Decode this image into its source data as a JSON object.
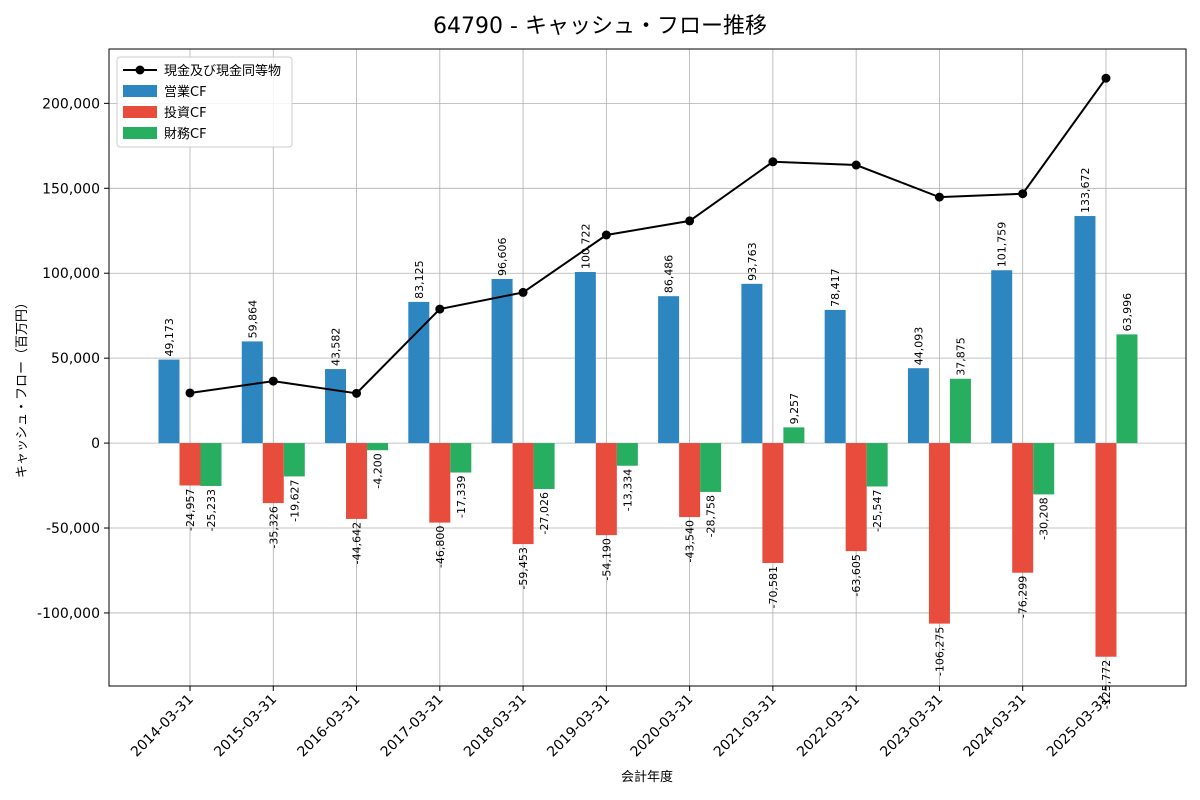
{
  "chart_data": {
    "type": "bar",
    "title": "64790 - キャッシュ・フロー推移",
    "xlabel": "会計年度",
    "ylabel": "キャッシュ・フロー（百万円）",
    "ylim": [
      -143000,
      232000
    ],
    "yticks": [
      -100000,
      -50000,
      0,
      50000,
      100000,
      150000,
      200000
    ],
    "ytick_labels": [
      "-100,000",
      "-50,000",
      "0",
      "50,000",
      "100,000",
      "150,000",
      "200,000"
    ],
    "grid": true,
    "legend_position": "top-left",
    "categories": [
      "2014-03-31",
      "2015-03-31",
      "2016-03-31",
      "2017-03-31",
      "2018-03-31",
      "2019-03-31",
      "2020-03-31",
      "2021-03-31",
      "2022-03-31",
      "2023-03-31",
      "2024-03-31",
      "2025-03-31"
    ],
    "series": [
      {
        "name": "営業CF",
        "kind": "bar",
        "color": "#2e86c1",
        "values": [
          49173,
          59864,
          43582,
          83125,
          96606,
          100722,
          86486,
          93763,
          78417,
          44093,
          101759,
          133672
        ],
        "labels": [
          "49,173",
          "59,864",
          "43,582",
          "83,125",
          "96,606",
          "100,722",
          "86,486",
          "93,763",
          "78,417",
          "44,093",
          "101,759",
          "133,672"
        ]
      },
      {
        "name": "投資CF",
        "kind": "bar",
        "color": "#e74c3c",
        "values": [
          -24957,
          -35326,
          -44642,
          -46800,
          -59453,
          -54190,
          -43540,
          -70581,
          -63605,
          -106275,
          -76299,
          -125772
        ],
        "labels": [
          "-24,957",
          "-35,326",
          "-44,642",
          "-46,800",
          "-59,453",
          "-54,190",
          "-43,540",
          "-70,581",
          "-63,605",
          "-106,275",
          "-76,299",
          "-125,772"
        ]
      },
      {
        "name": "財務CF",
        "kind": "bar",
        "color": "#27ae60",
        "values": [
          -25233,
          -19627,
          -4200,
          -17339,
          -27026,
          -13334,
          -28758,
          9257,
          -25547,
          37875,
          -30208,
          63996
        ],
        "labels": [
          "-25,233",
          "-19,627",
          "-4,200",
          "-17,339",
          "-27,026",
          "-13,334",
          "-28,758",
          "9,257",
          "-25,547",
          "37,875",
          "-30,208",
          "63,996"
        ]
      },
      {
        "name": "現金及び現金同等物",
        "kind": "line",
        "color": "#000000",
        "values": [
          29500,
          36500,
          29300,
          78900,
          88700,
          122500,
          130800,
          165600,
          163700,
          144800,
          146800,
          214800
        ]
      }
    ]
  }
}
